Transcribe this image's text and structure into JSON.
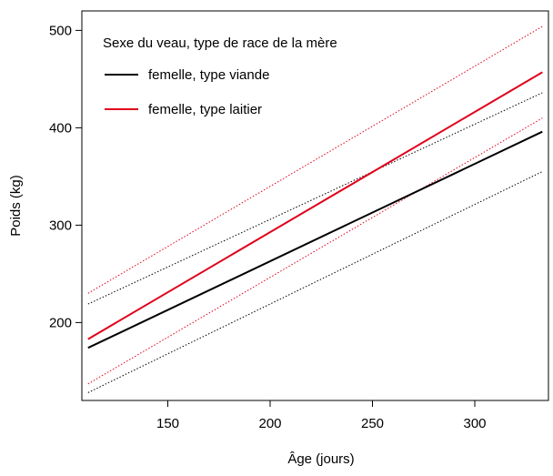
{
  "chart_data": {
    "type": "line",
    "xlabel": "Âge (jours)",
    "ylabel": "Poids (kg)",
    "xlim": [
      108,
      336
    ],
    "ylim": [
      120,
      520
    ],
    "xticks": [
      150,
      200,
      250,
      300
    ],
    "yticks": [
      200,
      300,
      400,
      500
    ],
    "grid": false,
    "legend": {
      "title": "Sexe du veau, type de race de la mère",
      "placement": "top-left",
      "entries": [
        "femelle, type viande",
        "femelle, type laitier"
      ]
    },
    "series": [
      {
        "name": "femelle, type viande",
        "color": "#000000",
        "style": "solid",
        "x": [
          111,
          333
        ],
        "y": [
          174,
          396
        ]
      },
      {
        "name": "femelle, type laitier",
        "color": "#e0001b",
        "style": "solid",
        "x": [
          111,
          333
        ],
        "y": [
          183,
          457
        ]
      }
    ],
    "bands": [
      {
        "of": "femelle, type viande",
        "color": "#000000",
        "style": "dotted",
        "x": [
          111,
          333
        ],
        "upper": [
          219,
          436
        ],
        "lower": [
          128,
          355
        ]
      },
      {
        "of": "femelle, type laitier",
        "color": "#e0001b",
        "style": "dotted",
        "x": [
          111,
          333
        ],
        "upper": [
          230,
          504
        ],
        "lower": [
          137,
          410
        ]
      }
    ]
  }
}
